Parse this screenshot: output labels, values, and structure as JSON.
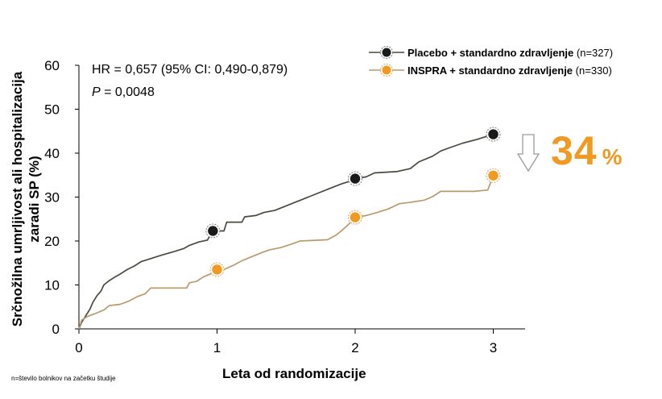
{
  "chart_data": {
    "type": "line",
    "xlabel": "Leta od randomizacije",
    "ylabel_line1": "Srčnožilna umrljivost ali hospitalizacija",
    "ylabel_line2": "zaradi SP (%)",
    "xlim": [
      0,
      3.2
    ],
    "ylim": [
      0,
      60
    ],
    "x_ticks": [
      0,
      1,
      2,
      3
    ],
    "y_ticks": [
      0,
      10,
      20,
      30,
      40,
      50,
      60
    ],
    "grid": false,
    "legend_position": "top-right",
    "series": [
      {
        "name_bold": "Placebo + standardno zdravljenje",
        "name_n": "(n=327)",
        "color": "#4a4a40",
        "marker_color": "#1a1a1a",
        "markers": [
          [
            0.97,
            22.3
          ],
          [
            2.0,
            34.2
          ],
          [
            3.0,
            44.3
          ]
        ],
        "values": [
          [
            0,
            0
          ],
          [
            0.02,
            1.5
          ],
          [
            0.05,
            3
          ],
          [
            0.08,
            4.5
          ],
          [
            0.1,
            6
          ],
          [
            0.13,
            7.5
          ],
          [
            0.16,
            8.6
          ],
          [
            0.18,
            10
          ],
          [
            0.22,
            11
          ],
          [
            0.26,
            11.8
          ],
          [
            0.3,
            12.5
          ],
          [
            0.35,
            13.5
          ],
          [
            0.4,
            14.3
          ],
          [
            0.45,
            15.3
          ],
          [
            0.52,
            16
          ],
          [
            0.6,
            16.8
          ],
          [
            0.68,
            17.5
          ],
          [
            0.76,
            18.3
          ],
          [
            0.8,
            19
          ],
          [
            0.87,
            19.8
          ],
          [
            0.93,
            20.2
          ],
          [
            0.97,
            22.3
          ],
          [
            1.05,
            22.3
          ],
          [
            1.07,
            24.3
          ],
          [
            1.18,
            24.3
          ],
          [
            1.2,
            25.5
          ],
          [
            1.28,
            25.8
          ],
          [
            1.34,
            26.5
          ],
          [
            1.42,
            27
          ],
          [
            1.5,
            28
          ],
          [
            1.58,
            29
          ],
          [
            1.66,
            30
          ],
          [
            1.74,
            31
          ],
          [
            1.82,
            32
          ],
          [
            1.9,
            33
          ],
          [
            1.96,
            33.6
          ],
          [
            2.0,
            34.2
          ],
          [
            2.08,
            34.6
          ],
          [
            2.14,
            35.5
          ],
          [
            2.3,
            35.8
          ],
          [
            2.4,
            36.5
          ],
          [
            2.46,
            38
          ],
          [
            2.56,
            39.3
          ],
          [
            2.62,
            40.5
          ],
          [
            2.68,
            41.2
          ],
          [
            2.78,
            42.3
          ],
          [
            2.88,
            43.1
          ],
          [
            3.0,
            44.3
          ]
        ]
      },
      {
        "name_bold": "INSPRA + standardno zdravljenje",
        "name_n": "(n=330)",
        "color": "#b89a6e",
        "marker_color": "#f09a22",
        "markers": [
          [
            1.0,
            13.5
          ],
          [
            2.0,
            25.4
          ],
          [
            3.0,
            34.9
          ]
        ],
        "values": [
          [
            0,
            0
          ],
          [
            0.02,
            2
          ],
          [
            0.06,
            2.8
          ],
          [
            0.12,
            3.5
          ],
          [
            0.18,
            4.3
          ],
          [
            0.22,
            5.3
          ],
          [
            0.3,
            5.6
          ],
          [
            0.36,
            6.3
          ],
          [
            0.42,
            7.3
          ],
          [
            0.48,
            8
          ],
          [
            0.52,
            9.3
          ],
          [
            0.78,
            9.3
          ],
          [
            0.8,
            10.5
          ],
          [
            0.85,
            10.8
          ],
          [
            0.9,
            11.8
          ],
          [
            0.96,
            12.6
          ],
          [
            1.0,
            13.5
          ],
          [
            1.05,
            13.5
          ],
          [
            1.12,
            14.5
          ],
          [
            1.18,
            15.5
          ],
          [
            1.24,
            16.3
          ],
          [
            1.32,
            17.3
          ],
          [
            1.38,
            18
          ],
          [
            1.46,
            18.5
          ],
          [
            1.54,
            19.3
          ],
          [
            1.6,
            20
          ],
          [
            1.8,
            20.3
          ],
          [
            1.86,
            21.3
          ],
          [
            1.9,
            22.3
          ],
          [
            1.96,
            24
          ],
          [
            2.0,
            25.4
          ],
          [
            2.08,
            25.8
          ],
          [
            2.16,
            26.5
          ],
          [
            2.24,
            27.3
          ],
          [
            2.32,
            28.5
          ],
          [
            2.4,
            28.8
          ],
          [
            2.5,
            29.3
          ],
          [
            2.56,
            30.1
          ],
          [
            2.62,
            31.3
          ],
          [
            2.86,
            31.3
          ],
          [
            2.96,
            31.6
          ],
          [
            3.0,
            34.9
          ]
        ]
      }
    ],
    "hr_text": "HR = 0,657 (95% CI: 0,490-0,879)",
    "p_label": "P",
    "p_value": " = 0,0048",
    "reduction_value": "34",
    "reduction_unit": "%",
    "footnote": "n=število bolnikov na začetku študije"
  }
}
